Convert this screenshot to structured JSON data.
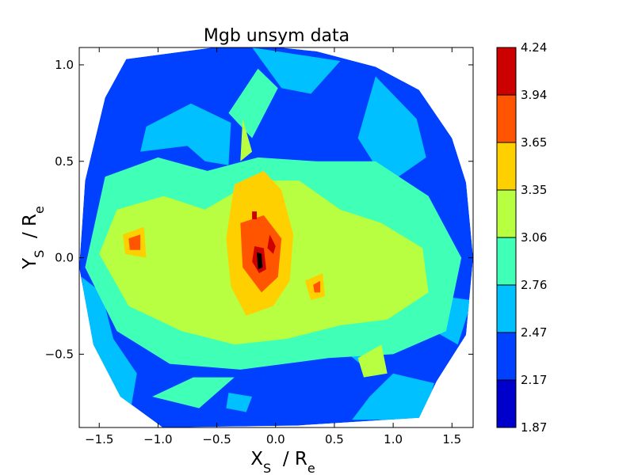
{
  "chart_data": {
    "type": "contourf",
    "title": "Mgb unsym data",
    "xlabel": {
      "main": "X",
      "sub": "S",
      "sep": "  / R",
      "sub2": "e"
    },
    "ylabel": {
      "main": "Y",
      "sub": "S",
      "sep": "  / R",
      "sub2": "e"
    },
    "xlim": [
      -1.67,
      1.68
    ],
    "ylim": [
      -0.88,
      1.09
    ],
    "xticks": [
      -1.5,
      -1.0,
      -0.5,
      0.0,
      0.5,
      1.0,
      1.5
    ],
    "xtick_labels": [
      "−1.5",
      "−1.0",
      "−0.5",
      "0.0",
      "0.5",
      "1.0",
      "1.5"
    ],
    "yticks": [
      -0.5,
      0.0,
      0.5,
      1.0
    ],
    "ytick_labels": [
      "−0.5",
      "0.0",
      "0.5",
      "1.0"
    ],
    "grid": false,
    "colormap": "jet",
    "levels": [
      1.87,
      2.17,
      2.47,
      2.76,
      3.06,
      3.35,
      3.65,
      3.94,
      4.24
    ],
    "level_labels": [
      "1.87",
      "2.17",
      "2.47",
      "2.76",
      "3.06",
      "3.35",
      "3.65",
      "3.94",
      "4.24"
    ],
    "level_colors": [
      "#0000cd",
      "#0040ff",
      "#00c0ff",
      "#40ffb7",
      "#b7ff40",
      "#ffd000",
      "#ff5500",
      "#cd0000"
    ],
    "data_boundary": [
      [
        -1.27,
        1.03
      ],
      [
        -0.28,
        1.11
      ],
      [
        0.35,
        1.07
      ],
      [
        0.85,
        0.99
      ],
      [
        1.22,
        0.87
      ],
      [
        1.5,
        0.62
      ],
      [
        1.62,
        0.39
      ],
      [
        1.68,
        0.0
      ],
      [
        1.62,
        -0.4
      ],
      [
        1.37,
        -0.64
      ],
      [
        1.22,
        -0.83
      ],
      [
        0.18,
        -0.87
      ],
      [
        -0.96,
        -0.88
      ],
      [
        -1.32,
        -0.72
      ],
      [
        -1.55,
        -0.45
      ],
      [
        -1.67,
        -0.05
      ],
      [
        -1.62,
        0.4
      ],
      [
        -1.45,
        0.83
      ]
    ],
    "regions": [
      {
        "level": 2,
        "points": [
          [
            -1.1,
            0.68
          ],
          [
            -0.72,
            0.8
          ],
          [
            -0.38,
            0.7
          ],
          [
            -0.4,
            0.48
          ],
          [
            -0.6,
            0.5
          ],
          [
            -0.75,
            0.58
          ],
          [
            -1.15,
            0.55
          ]
        ]
      },
      {
        "level": 2,
        "points": [
          [
            0.85,
            0.94
          ],
          [
            1.2,
            0.72
          ],
          [
            1.28,
            0.52
          ],
          [
            0.95,
            0.38
          ],
          [
            0.7,
            0.62
          ]
        ]
      },
      {
        "level": 2,
        "points": [
          [
            -0.2,
            1.09
          ],
          [
            0.55,
            1.02
          ],
          [
            0.3,
            0.85
          ],
          [
            0.05,
            0.88
          ]
        ]
      },
      {
        "level": 2,
        "points": [
          [
            -1.65,
            -0.1
          ],
          [
            -1.55,
            -0.55
          ],
          [
            -1.25,
            -0.85
          ],
          [
            -1.18,
            -0.6
          ],
          [
            -1.38,
            -0.42
          ],
          [
            -1.48,
            -0.18
          ]
        ]
      },
      {
        "level": 2,
        "points": [
          [
            0.65,
            -0.84
          ],
          [
            1.25,
            -0.84
          ],
          [
            1.35,
            -0.65
          ],
          [
            1.0,
            -0.6
          ],
          [
            0.8,
            -0.72
          ]
        ]
      },
      {
        "level": 2,
        "points": [
          [
            1.42,
            -0.2
          ],
          [
            1.67,
            -0.22
          ],
          [
            1.55,
            -0.45
          ],
          [
            1.35,
            -0.38
          ]
        ]
      },
      {
        "level": 2,
        "points": [
          [
            -0.4,
            -0.7
          ],
          [
            -0.2,
            -0.72
          ],
          [
            -0.25,
            -0.8
          ],
          [
            -0.42,
            -0.78
          ]
        ]
      },
      {
        "level": 2,
        "points": [
          [
            0.62,
            -0.5
          ],
          [
            0.75,
            -0.25
          ],
          [
            0.88,
            -0.45
          ],
          [
            0.78,
            -0.58
          ]
        ]
      },
      {
        "level": 3,
        "points": [
          [
            -1.45,
            0.42
          ],
          [
            -1.0,
            0.52
          ],
          [
            -0.58,
            0.45
          ],
          [
            -0.15,
            0.52
          ],
          [
            0.35,
            0.5
          ],
          [
            0.85,
            0.5
          ],
          [
            1.3,
            0.32
          ],
          [
            1.58,
            0.0
          ],
          [
            1.45,
            -0.38
          ],
          [
            1.0,
            -0.5
          ],
          [
            0.45,
            -0.52
          ],
          [
            -0.3,
            -0.58
          ],
          [
            -0.9,
            -0.55
          ],
          [
            -1.35,
            -0.38
          ],
          [
            -1.62,
            -0.05
          ]
        ]
      },
      {
        "level": 3,
        "points": [
          [
            -1.05,
            -0.72
          ],
          [
            -0.65,
            -0.78
          ],
          [
            -0.35,
            -0.62
          ],
          [
            -0.7,
            -0.62
          ]
        ]
      },
      {
        "level": 3,
        "points": [
          [
            -0.4,
            0.75
          ],
          [
            -0.15,
            0.98
          ],
          [
            0.02,
            0.88
          ],
          [
            -0.2,
            0.62
          ]
        ]
      },
      {
        "level": 4,
        "points": [
          [
            -1.35,
            0.25
          ],
          [
            -0.95,
            0.32
          ],
          [
            -0.6,
            0.25
          ],
          [
            -0.18,
            0.4
          ],
          [
            0.2,
            0.4
          ],
          [
            0.55,
            0.25
          ],
          [
            0.9,
            0.18
          ],
          [
            1.25,
            0.05
          ],
          [
            1.3,
            -0.18
          ],
          [
            0.95,
            -0.32
          ],
          [
            0.55,
            -0.35
          ],
          [
            0.1,
            -0.42
          ],
          [
            -0.35,
            -0.45
          ],
          [
            -0.8,
            -0.38
          ],
          [
            -1.25,
            -0.25
          ],
          [
            -1.5,
            0.02
          ]
        ]
      },
      {
        "level": 4,
        "points": [
          [
            0.7,
            -0.52
          ],
          [
            0.9,
            -0.45
          ],
          [
            0.95,
            -0.6
          ],
          [
            0.75,
            -0.62
          ]
        ]
      },
      {
        "level": 4,
        "points": [
          [
            -0.28,
            0.72
          ],
          [
            -0.2,
            0.55
          ],
          [
            -0.3,
            0.5
          ]
        ]
      },
      {
        "level": 5,
        "points": [
          [
            -0.35,
            0.38
          ],
          [
            -0.1,
            0.45
          ],
          [
            0.05,
            0.35
          ],
          [
            0.15,
            0.12
          ],
          [
            0.12,
            -0.12
          ],
          [
            -0.02,
            -0.25
          ],
          [
            -0.25,
            -0.3
          ],
          [
            -0.38,
            -0.15
          ],
          [
            -0.42,
            0.1
          ]
        ]
      },
      {
        "level": 5,
        "points": [
          [
            -1.3,
            0.12
          ],
          [
            -1.12,
            0.16
          ],
          [
            -1.1,
            0.0
          ],
          [
            -1.28,
            0.02
          ]
        ]
      },
      {
        "level": 5,
        "points": [
          [
            0.25,
            -0.12
          ],
          [
            0.4,
            -0.08
          ],
          [
            0.42,
            -0.2
          ],
          [
            0.3,
            -0.22
          ]
        ]
      },
      {
        "level": 6,
        "points": [
          [
            -0.3,
            0.18
          ],
          [
            -0.1,
            0.22
          ],
          [
            0.05,
            0.1
          ],
          [
            0.02,
            -0.1
          ],
          [
            -0.12,
            -0.18
          ],
          [
            -0.28,
            -0.05
          ]
        ]
      },
      {
        "level": 6,
        "points": [
          [
            -1.25,
            0.1
          ],
          [
            -1.15,
            0.12
          ],
          [
            -1.15,
            0.04
          ],
          [
            -1.24,
            0.04
          ]
        ]
      },
      {
        "level": 6,
        "points": [
          [
            0.32,
            -0.14
          ],
          [
            0.38,
            -0.12
          ],
          [
            0.38,
            -0.18
          ],
          [
            0.33,
            -0.18
          ]
        ]
      },
      {
        "level": 7,
        "points": [
          [
            -0.05,
            0.12
          ],
          [
            0.0,
            0.06
          ],
          [
            -0.02,
            0.02
          ],
          [
            -0.07,
            0.05
          ]
        ]
      },
      {
        "level": 7,
        "points": [
          [
            -0.18,
            0.06
          ],
          [
            -0.1,
            0.05
          ],
          [
            -0.08,
            -0.06
          ],
          [
            -0.14,
            -0.08
          ],
          [
            -0.2,
            -0.02
          ]
        ]
      },
      {
        "level": 7,
        "points": [
          [
            -0.2,
            0.24
          ],
          [
            -0.16,
            0.24
          ],
          [
            -0.16,
            0.2
          ],
          [
            -0.2,
            0.2
          ]
        ]
      },
      {
        "level": 8,
        "points": [
          [
            -0.16,
            0.03
          ],
          [
            -0.12,
            0.02
          ],
          [
            -0.11,
            -0.05
          ],
          [
            -0.15,
            -0.06
          ]
        ]
      },
      {
        "level": 1,
        "points": [
          [
            0.28,
            0.72
          ],
          [
            0.38,
            0.82
          ],
          [
            0.34,
            0.62
          ]
        ]
      },
      {
        "level": 1,
        "points": [
          [
            0.95,
            0.95
          ],
          [
            1.18,
            0.82
          ],
          [
            1.05,
            0.78
          ]
        ]
      }
    ]
  }
}
